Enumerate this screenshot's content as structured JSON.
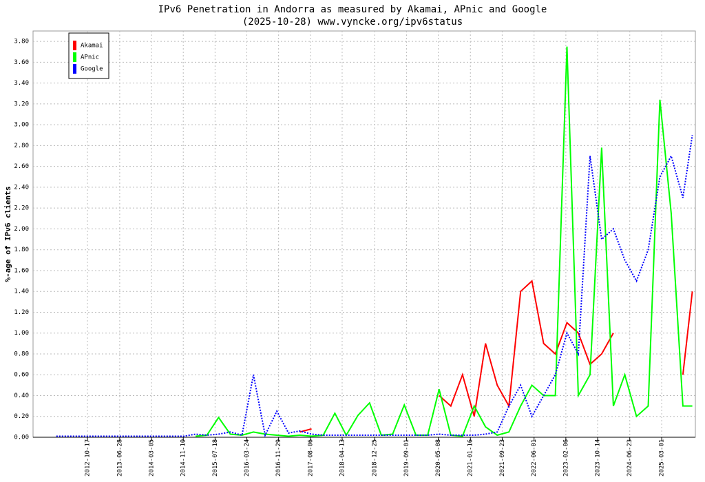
{
  "chart_data": {
    "type": "line",
    "title": "IPv6 Penetration in Andorra as measured by Akamai, APnic and Google",
    "subtitle": "(2025-10-28) www.vyncke.org/ipv6status",
    "y_label": "%-age of IPv6 clients",
    "x": [
      "2012-02-15",
      "2012-05-15",
      "2012-08-15",
      "2012-11-15",
      "2013-02-15",
      "2013-05-15",
      "2013-08-15",
      "2013-11-15",
      "2014-02-15",
      "2014-05-15",
      "2014-08-15",
      "2014-11-15",
      "2015-02-15",
      "2015-05-15",
      "2015-08-15",
      "2015-11-15",
      "2016-02-15",
      "2016-05-15",
      "2016-08-15",
      "2016-11-15",
      "2017-02-15",
      "2017-05-15",
      "2017-08-15",
      "2017-11-15",
      "2018-02-15",
      "2018-05-15",
      "2018-08-15",
      "2018-11-15",
      "2019-02-15",
      "2019-05-15",
      "2019-08-15",
      "2019-11-15",
      "2020-02-15",
      "2020-05-15",
      "2020-08-15",
      "2020-11-15",
      "2021-02-15",
      "2021-05-15",
      "2021-08-15",
      "2021-11-15",
      "2022-02-15",
      "2022-05-15",
      "2022-08-15",
      "2022-11-15",
      "2023-02-15",
      "2023-05-15",
      "2023-08-15",
      "2023-11-15",
      "2024-02-15",
      "2024-05-15",
      "2024-08-15",
      "2024-11-15",
      "2025-02-15",
      "2025-05-15",
      "2025-08-15",
      "2025-10-28"
    ],
    "series": [
      {
        "name": "Akamai",
        "color": "#ff0000",
        "dash": false,
        "values": [
          null,
          null,
          null,
          null,
          null,
          null,
          null,
          null,
          null,
          null,
          null,
          null,
          null,
          null,
          null,
          null,
          null,
          null,
          null,
          null,
          null,
          0.05,
          0.08,
          null,
          null,
          null,
          null,
          null,
          null,
          null,
          null,
          null,
          null,
          0.4,
          0.3,
          0.6,
          0.2,
          0.9,
          0.5,
          0.3,
          1.4,
          1.5,
          0.9,
          0.8,
          1.1,
          1.0,
          0.7,
          0.8,
          1.0,
          null,
          null,
          null,
          null,
          null,
          0.6,
          1.4
        ]
      },
      {
        "name": "APnic",
        "color": "#00ff00",
        "dash": false,
        "values": [
          null,
          null,
          null,
          null,
          null,
          null,
          null,
          null,
          null,
          null,
          null,
          null,
          0.01,
          0.02,
          0.19,
          0.03,
          0.02,
          0.05,
          0.03,
          0.02,
          0.01,
          0.02,
          0.01,
          0.02,
          0.23,
          0.02,
          0.21,
          0.33,
          0.02,
          0.03,
          0.31,
          0.02,
          0.02,
          0.46,
          0.02,
          0.01,
          0.3,
          0.1,
          0.02,
          0.05,
          0.3,
          0.5,
          0.4,
          0.4,
          3.75,
          0.4,
          0.6,
          2.78,
          0.3,
          0.6,
          0.2,
          0.3,
          3.24,
          2.15,
          0.3,
          0.3
        ]
      },
      {
        "name": "Google",
        "color": "#0000ff",
        "dash": true,
        "values": [
          0.01,
          0.01,
          0.01,
          0.01,
          0.01,
          0.01,
          0.01,
          0.01,
          0.01,
          0.01,
          0.01,
          0.01,
          0.03,
          0.02,
          0.03,
          0.05,
          0.02,
          0.6,
          0.02,
          0.25,
          0.04,
          0.06,
          0.03,
          0.02,
          0.02,
          0.02,
          0.02,
          0.02,
          0.02,
          0.02,
          0.02,
          0.02,
          0.02,
          0.03,
          0.02,
          0.02,
          0.02,
          0.03,
          0.05,
          0.3,
          0.5,
          0.2,
          0.4,
          0.6,
          1.0,
          0.8,
          2.7,
          1.9,
          2.0,
          1.7,
          1.5,
          1.8,
          2.5,
          2.7,
          2.3,
          2.9
        ]
      }
    ],
    "xlim": [
      "2011-08-16",
      "2025-11-21"
    ],
    "xticks": [
      "2012-10-17",
      "2013-06-28",
      "2014-03-05",
      "2014-11-10",
      "2015-07-18",
      "2016-03-24",
      "2016-11-29",
      "2017-08-06",
      "2018-04-13",
      "2018-12-25",
      "2019-09-01",
      "2020-05-08",
      "2021-01-16",
      "2021-09-23",
      "2022-06-01",
      "2023-02-06",
      "2023-10-14",
      "2024-06-23",
      "2025-03-01"
    ],
    "ylim": [
      0,
      3.9
    ],
    "yticks": [
      {
        "value": 0,
        "label": "0.00"
      },
      {
        "value": 0.2,
        "label": "0.20"
      },
      {
        "value": 0.4,
        "label": "0.40"
      },
      {
        "value": 0.6,
        "label": "0.60"
      },
      {
        "value": 0.8,
        "label": "0.80"
      },
      {
        "value": 1,
        "label": "1.00"
      },
      {
        "value": 1.2,
        "label": "1.20"
      },
      {
        "value": 1.4,
        "label": "1.40"
      },
      {
        "value": 1.6,
        "label": "1.60"
      },
      {
        "value": 1.8,
        "label": "1.80"
      },
      {
        "value": 2,
        "label": "2.00"
      },
      {
        "value": 2.2,
        "label": "2.20"
      },
      {
        "value": 2.4,
        "label": "2.40"
      },
      {
        "value": 2.6,
        "label": "2.60"
      },
      {
        "value": 2.8,
        "label": "2.80"
      },
      {
        "value": 3,
        "label": "3.00"
      },
      {
        "value": 3.2,
        "label": "3.20"
      },
      {
        "value": 3.4,
        "label": "3.40"
      },
      {
        "value": 3.6,
        "label": "3.60"
      },
      {
        "value": 3.8,
        "label": "3.80"
      }
    ],
    "grid": true,
    "legend": "top-left"
  }
}
